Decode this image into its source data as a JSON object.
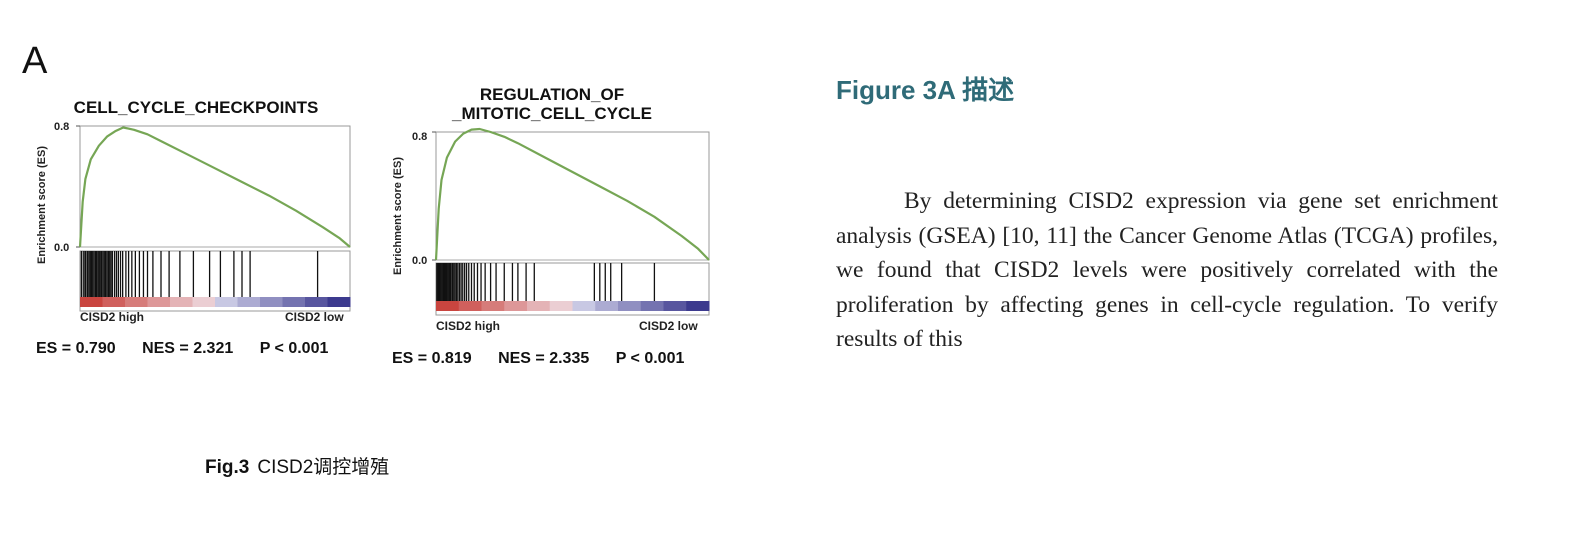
{
  "panel_label": "A",
  "caption": {
    "prefix": "Fig.3",
    "text": "CISD2调控增殖"
  },
  "heading": "Figure 3A 描述",
  "paragraph": "By determining CISD2 expression via gene set enrichment analysis (GSEA) [10, 11] the Cancer Genome Atlas (TCGA) profiles, we found that CISD2 levels were positively correlated with the proliferation by affecting genes in cell-cycle regulation. To verify results of this",
  "colors": {
    "curve": "#76a655",
    "heading": "#2f6b78",
    "high": "#c9453f",
    "low": "#3c3a8e"
  },
  "chart_data": [
    {
      "type": "line",
      "title": "CELL_CYCLE_CHECKPOINTS",
      "title_lines": [
        "CELL_CYCLE_CHECKPOINTS"
      ],
      "ylabel": "Enrichment score (ES)",
      "yticks": [
        "0.8",
        "0.0"
      ],
      "ylim": [
        0,
        0.8
      ],
      "x": [
        0,
        0.01,
        0.02,
        0.04,
        0.07,
        0.1,
        0.13,
        0.16,
        0.2,
        0.25,
        0.3,
        0.4,
        0.5,
        0.6,
        0.7,
        0.8,
        0.9,
        0.96,
        1.0
      ],
      "es": [
        0,
        0.3,
        0.45,
        0.58,
        0.67,
        0.73,
        0.765,
        0.79,
        0.775,
        0.745,
        0.7,
        0.61,
        0.52,
        0.43,
        0.34,
        0.24,
        0.13,
        0.06,
        0.0
      ],
      "hits": [
        0.005,
        0.012,
        0.018,
        0.022,
        0.028,
        0.033,
        0.038,
        0.042,
        0.047,
        0.052,
        0.057,
        0.061,
        0.066,
        0.071,
        0.075,
        0.08,
        0.085,
        0.09,
        0.095,
        0.1,
        0.105,
        0.11,
        0.115,
        0.12,
        0.128,
        0.135,
        0.142,
        0.15,
        0.158,
        0.17,
        0.18,
        0.192,
        0.205,
        0.22,
        0.235,
        0.25,
        0.27,
        0.3,
        0.33,
        0.37,
        0.42,
        0.48,
        0.52,
        0.57,
        0.6,
        0.63,
        0.88
      ],
      "phenotype_left": "CISD2 high",
      "phenotype_right": "CISD2 low",
      "stats": {
        "es": "ES = 0.790",
        "nes": "NES = 2.321",
        "p": "P < 0.001"
      }
    },
    {
      "type": "line",
      "title": "REGULATION_OF_MITOTIC_CELL_CYCLE",
      "title_lines": [
        "REGULATION_OF",
        "_MITOTIC_CELL_CYCLE"
      ],
      "ylabel": "Enrichment score (ES)",
      "yticks": [
        "0.8",
        "0.0"
      ],
      "ylim": [
        0,
        0.8
      ],
      "x": [
        0,
        0.01,
        0.02,
        0.04,
        0.07,
        0.1,
        0.13,
        0.16,
        0.2,
        0.25,
        0.3,
        0.4,
        0.5,
        0.6,
        0.7,
        0.8,
        0.9,
        0.96,
        1.0
      ],
      "es": [
        0,
        0.32,
        0.5,
        0.64,
        0.74,
        0.79,
        0.815,
        0.819,
        0.8,
        0.77,
        0.73,
        0.64,
        0.55,
        0.46,
        0.37,
        0.27,
        0.15,
        0.07,
        0.0
      ],
      "hits": [
        0.003,
        0.007,
        0.011,
        0.015,
        0.019,
        0.023,
        0.027,
        0.031,
        0.035,
        0.039,
        0.043,
        0.047,
        0.051,
        0.055,
        0.06,
        0.065,
        0.07,
        0.075,
        0.08,
        0.086,
        0.092,
        0.098,
        0.105,
        0.112,
        0.12,
        0.13,
        0.14,
        0.152,
        0.165,
        0.18,
        0.2,
        0.22,
        0.25,
        0.28,
        0.3,
        0.33,
        0.36,
        0.58,
        0.6,
        0.62,
        0.64,
        0.68,
        0.8
      ],
      "phenotype_left": "CISD2 high",
      "phenotype_right": "CISD2 low",
      "stats": {
        "es": "ES = 0.819",
        "nes": "NES = 2.335",
        "p": "P < 0.001"
      }
    }
  ]
}
